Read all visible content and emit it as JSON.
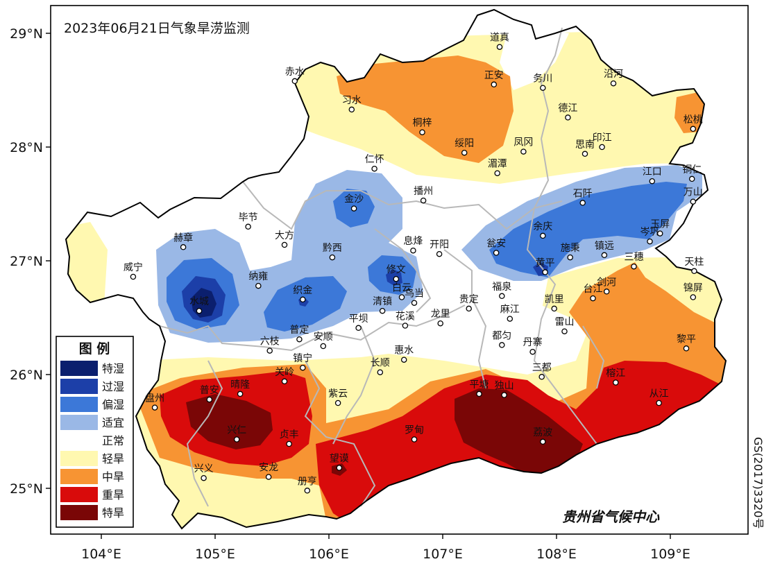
{
  "title": "2023年06月21日气象旱涝监测",
  "credit": "贵州省气候中心",
  "approval_number": "GS(2017)3320号",
  "axes": {
    "y_ticks": [
      "29°N",
      "28°N",
      "27°N",
      "26°N",
      "25°N"
    ],
    "x_ticks": [
      "104°E",
      "105°E",
      "106°E",
      "107°E",
      "108°E",
      "109°E"
    ]
  },
  "legend": {
    "title": "图  例",
    "items": [
      {
        "label": "特湿",
        "color": "#0b1f6e"
      },
      {
        "label": "过湿",
        "color": "#1c3fa8"
      },
      {
        "label": "偏湿",
        "color": "#3c78d8"
      },
      {
        "label": "适宜",
        "color": "#9ab8e6"
      },
      {
        "label": "正常",
        "color": "#ffffff"
      },
      {
        "label": "轻旱",
        "color": "#fff8b0"
      },
      {
        "label": "中旱",
        "color": "#f79433"
      },
      {
        "label": "重旱",
        "color": "#d90b0b"
      },
      {
        "label": "特旱",
        "color": "#7a0606"
      }
    ]
  },
  "stations": [
    {
      "name": "道真",
      "lon": 107.5,
      "lat": 28.88
    },
    {
      "name": "赤水",
      "lon": 105.7,
      "lat": 28.58
    },
    {
      "name": "习水",
      "lon": 106.2,
      "lat": 28.33
    },
    {
      "name": "正安",
      "lon": 107.45,
      "lat": 28.55
    },
    {
      "name": "务川",
      "lon": 107.88,
      "lat": 28.52
    },
    {
      "name": "沿河",
      "lon": 108.5,
      "lat": 28.56
    },
    {
      "name": "松桃",
      "lon": 109.2,
      "lat": 28.16
    },
    {
      "name": "桐梓",
      "lon": 106.82,
      "lat": 28.13
    },
    {
      "name": "德江",
      "lon": 108.1,
      "lat": 28.26
    },
    {
      "name": "绥阳",
      "lon": 107.19,
      "lat": 27.95
    },
    {
      "name": "凤冈",
      "lon": 107.71,
      "lat": 27.96
    },
    {
      "name": "印江",
      "lon": 108.4,
      "lat": 28.0
    },
    {
      "name": "思南",
      "lon": 108.25,
      "lat": 27.94
    },
    {
      "name": "湄潭",
      "lon": 107.48,
      "lat": 27.77
    },
    {
      "name": "仁怀",
      "lon": 106.4,
      "lat": 27.81
    },
    {
      "name": "江口",
      "lon": 108.84,
      "lat": 27.7
    },
    {
      "name": "铜仁",
      "lon": 109.19,
      "lat": 27.72
    },
    {
      "name": "万山",
      "lon": 109.2,
      "lat": 27.52
    },
    {
      "name": "播州",
      "lon": 106.83,
      "lat": 27.53
    },
    {
      "name": "金沙",
      "lon": 106.22,
      "lat": 27.46
    },
    {
      "name": "石阡",
      "lon": 108.23,
      "lat": 27.51
    },
    {
      "name": "毕节",
      "lon": 105.29,
      "lat": 27.3
    },
    {
      "name": "余庆",
      "lon": 107.88,
      "lat": 27.22
    },
    {
      "name": "岑巩",
      "lon": 108.82,
      "lat": 27.17
    },
    {
      "name": "玉屏",
      "lon": 108.91,
      "lat": 27.24
    },
    {
      "name": "赫章",
      "lon": 104.72,
      "lat": 27.12
    },
    {
      "name": "大方",
      "lon": 105.61,
      "lat": 27.14
    },
    {
      "name": "息烽",
      "lon": 106.74,
      "lat": 27.09
    },
    {
      "name": "开阳",
      "lon": 106.97,
      "lat": 27.06
    },
    {
      "name": "瓮安",
      "lon": 107.47,
      "lat": 27.07
    },
    {
      "name": "施秉",
      "lon": 108.12,
      "lat": 27.03
    },
    {
      "name": "镇远",
      "lon": 108.42,
      "lat": 27.05
    },
    {
      "name": "黔西",
      "lon": 106.03,
      "lat": 27.03
    },
    {
      "name": "威宁",
      "lon": 104.28,
      "lat": 26.86
    },
    {
      "name": "黄平",
      "lon": 107.9,
      "lat": 26.9
    },
    {
      "name": "三穗",
      "lon": 108.68,
      "lat": 26.95
    },
    {
      "name": "天柱",
      "lon": 109.21,
      "lat": 26.91
    },
    {
      "name": "修文",
      "lon": 106.59,
      "lat": 26.84
    },
    {
      "name": "纳雍",
      "lon": 105.38,
      "lat": 26.78
    },
    {
      "name": "织金",
      "lon": 105.77,
      "lat": 26.66
    },
    {
      "name": "水城",
      "lon": 104.86,
      "lat": 26.56
    },
    {
      "name": "白云",
      "lon": 106.64,
      "lat": 26.68
    },
    {
      "name": "乌当",
      "lon": 106.75,
      "lat": 26.63
    },
    {
      "name": "清镇",
      "lon": 106.47,
      "lat": 26.56
    },
    {
      "name": "贵定",
      "lon": 107.23,
      "lat": 26.58
    },
    {
      "name": "福泉",
      "lon": 107.52,
      "lat": 26.69
    },
    {
      "name": "凯里",
      "lon": 107.98,
      "lat": 26.58
    },
    {
      "name": "台江",
      "lon": 108.32,
      "lat": 26.67
    },
    {
      "name": "剑河",
      "lon": 108.44,
      "lat": 26.73
    },
    {
      "name": "锦屏",
      "lon": 109.2,
      "lat": 26.68
    },
    {
      "name": "麻江",
      "lon": 107.59,
      "lat": 26.49
    },
    {
      "name": "花溪",
      "lon": 106.67,
      "lat": 26.43
    },
    {
      "name": "龙里",
      "lon": 106.98,
      "lat": 26.45
    },
    {
      "name": "雷山",
      "lon": 108.07,
      "lat": 26.38
    },
    {
      "name": "平坝",
      "lon": 106.26,
      "lat": 26.41
    },
    {
      "name": "普定",
      "lon": 105.74,
      "lat": 26.31
    },
    {
      "name": "安顺",
      "lon": 105.95,
      "lat": 26.25
    },
    {
      "name": "都匀",
      "lon": 107.52,
      "lat": 26.26
    },
    {
      "name": "六枝",
      "lon": 105.48,
      "lat": 26.21
    },
    {
      "name": "黎平",
      "lon": 109.14,
      "lat": 26.23
    },
    {
      "name": "惠水",
      "lon": 106.66,
      "lat": 26.13
    },
    {
      "name": "丹寨",
      "lon": 107.79,
      "lat": 26.2
    },
    {
      "name": "镇宁",
      "lon": 105.77,
      "lat": 26.06
    },
    {
      "name": "长顺",
      "lon": 106.45,
      "lat": 26.02
    },
    {
      "name": "三都",
      "lon": 107.87,
      "lat": 25.98
    },
    {
      "name": "关岭",
      "lon": 105.61,
      "lat": 25.94
    },
    {
      "name": "晴隆",
      "lon": 105.22,
      "lat": 25.83
    },
    {
      "name": "普安",
      "lon": 104.95,
      "lat": 25.78
    },
    {
      "name": "盘州",
      "lon": 104.47,
      "lat": 25.71
    },
    {
      "name": "平塘",
      "lon": 107.32,
      "lat": 25.83
    },
    {
      "name": "独山",
      "lon": 107.54,
      "lat": 25.82
    },
    {
      "name": "榕江",
      "lon": 108.52,
      "lat": 25.93
    },
    {
      "name": "从江",
      "lon": 108.9,
      "lat": 25.75
    },
    {
      "name": "紫云",
      "lon": 106.08,
      "lat": 25.75
    },
    {
      "name": "兴仁",
      "lon": 105.19,
      "lat": 25.43
    },
    {
      "name": "贞丰",
      "lon": 105.65,
      "lat": 25.39
    },
    {
      "name": "罗甸",
      "lon": 106.75,
      "lat": 25.43
    },
    {
      "name": "荔波",
      "lon": 107.88,
      "lat": 25.41
    },
    {
      "name": "望谟",
      "lon": 106.09,
      "lat": 25.18
    },
    {
      "name": "兴义",
      "lon": 104.9,
      "lat": 25.09
    },
    {
      "name": "安龙",
      "lon": 105.47,
      "lat": 25.1
    },
    {
      "name": "册亨",
      "lon": 105.81,
      "lat": 24.98
    }
  ]
}
